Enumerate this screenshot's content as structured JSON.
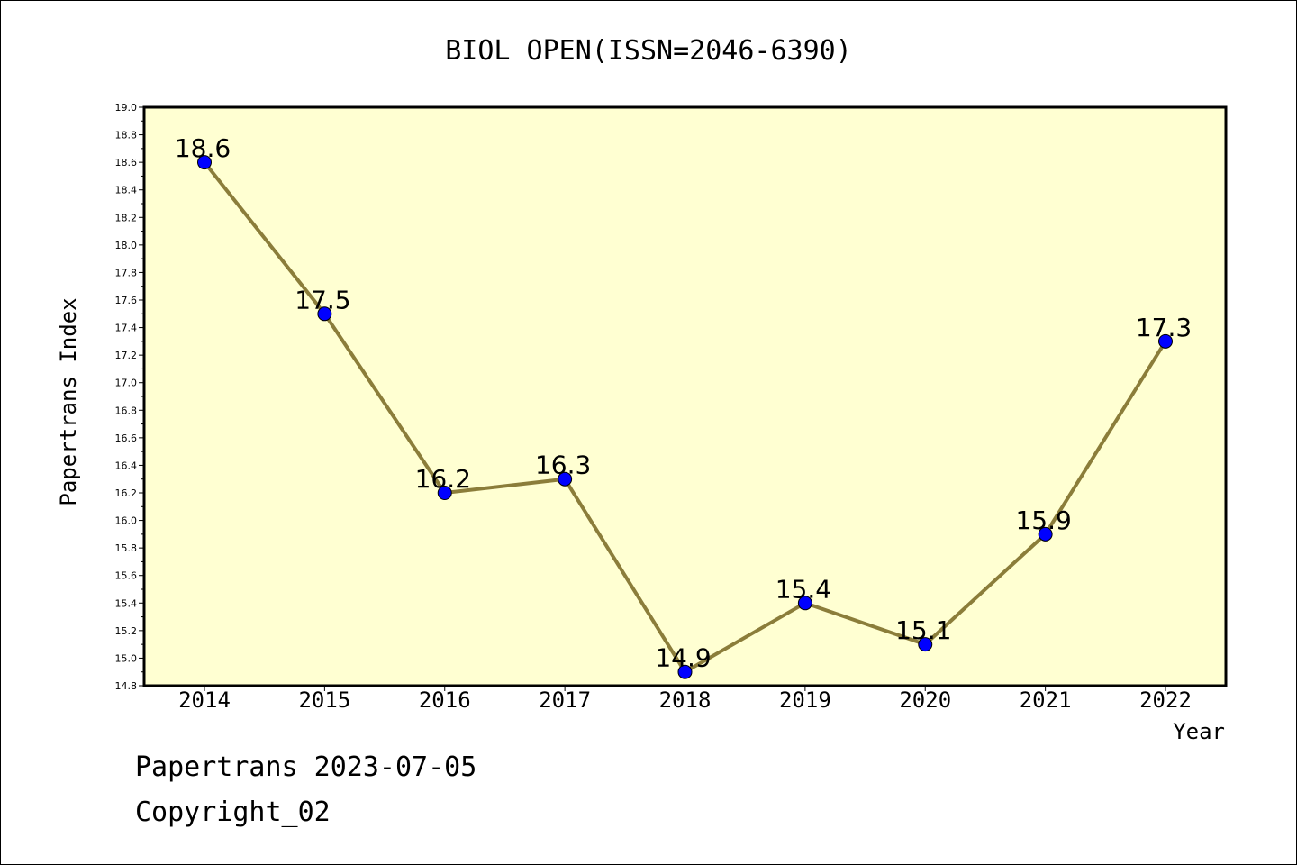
{
  "chart_data": {
    "type": "line",
    "title": "BIOL OPEN(ISSN=2046-6390)",
    "xlabel": "Year",
    "ylabel": "Papertrans Index",
    "categories": [
      "2014",
      "2015",
      "2016",
      "2017",
      "2018",
      "2019",
      "2020",
      "2021",
      "2022"
    ],
    "series": [
      {
        "values": [
          18.6,
          17.5,
          16.2,
          16.3,
          14.9,
          15.4,
          15.1,
          15.9,
          17.3
        ],
        "data_labels": [
          "18.6",
          "17.5",
          "16.2",
          "16.3",
          "14.9",
          "15.4",
          "15.1",
          "15.9",
          "17.3"
        ]
      }
    ],
    "ylim": [
      14.8,
      19.0
    ],
    "y_ticks": [
      "14.8",
      "15.0",
      "15.2",
      "15.4",
      "15.6",
      "15.8",
      "16.0",
      "16.2",
      "16.4",
      "16.6",
      "16.8",
      "17.0",
      "17.2",
      "17.4",
      "17.6",
      "17.8",
      "18.0",
      "18.2",
      "18.4",
      "18.6",
      "18.8",
      "19.0"
    ],
    "grid": false,
    "colors": {
      "plot_background": "#ffffd2",
      "line": "#8b7d3a",
      "marker": "#0000ff"
    }
  },
  "footer": {
    "brand": "Papertrans 2023-07-05",
    "copyright": "Copyright_02"
  }
}
